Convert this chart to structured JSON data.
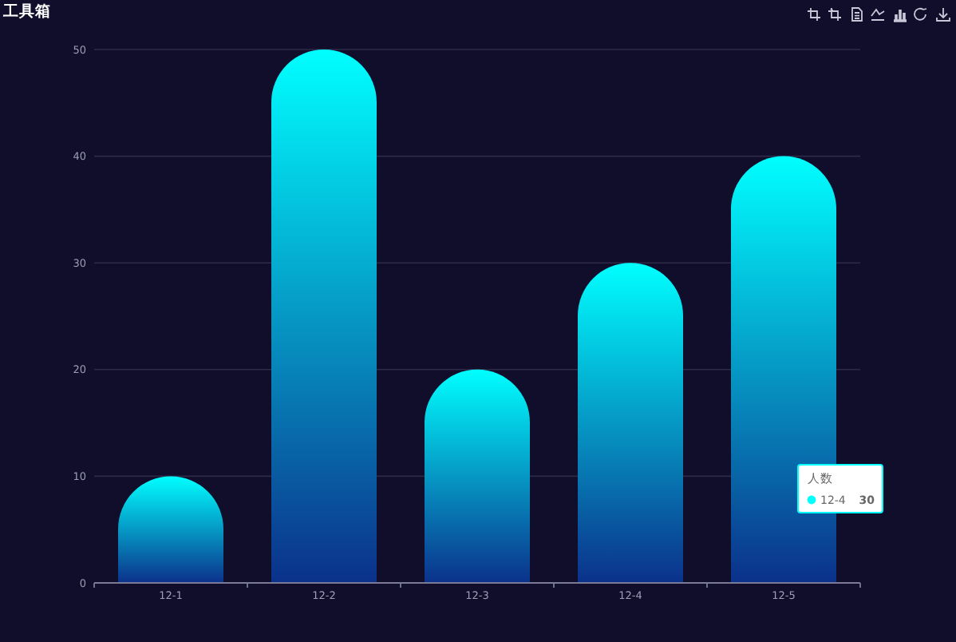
{
  "chart_data": {
    "type": "bar",
    "title": "工具箱",
    "categories": [
      "12-1",
      "12-2",
      "12-3",
      "12-4",
      "12-5"
    ],
    "series": [
      {
        "name": "人数",
        "color": "#00ffff",
        "values": [
          10,
          50,
          20,
          30,
          40
        ]
      }
    ],
    "ylim": [
      0,
      50
    ],
    "yticks": [
      0,
      10,
      20,
      30,
      40,
      50
    ],
    "grid": "y",
    "legend": "bottom right",
    "annotations": [
      "12-4",
      "30"
    ]
  }
}
